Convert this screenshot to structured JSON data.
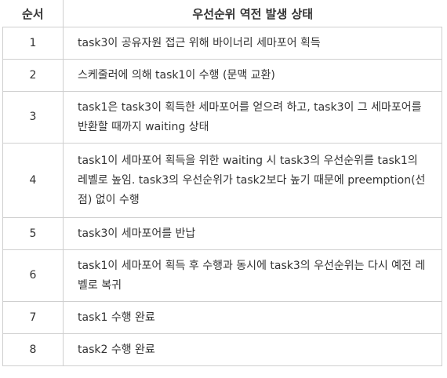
{
  "table": {
    "headers": [
      "순서",
      "우선순위 역전 발생 상태"
    ],
    "rows": [
      {
        "num": "1",
        "desc": "task3이 공유자원 접근 위해 바이너리 세마포어 획득"
      },
      {
        "num": "2",
        "desc": "스케줄러에 의해 task1이 수행 (문맥 교환)"
      },
      {
        "num": "3",
        "desc": "task1은 task3이 획득한 세마포어를 얻으려 하고, task3이 그 세마포어를 반환할 때까지 waiting 상태"
      },
      {
        "num": "4",
        "desc": "task1이 세마포어 획득을 위한 waiting 시 task3의 우선순위를 task1의 레벨로 높임. task3의 우선순위가 task2보다 높기 때문에 preemption(선점) 없이 수행"
      },
      {
        "num": "5",
        "desc": "task3이 세마포어를 반납"
      },
      {
        "num": "6",
        "desc": "task1이 세마포어 획득 후 수행과 동시에 task3의 우선순위는 다시 예전 레벨로 복귀"
      },
      {
        "num": "7",
        "desc": "task1 수행 완료"
      },
      {
        "num": "8",
        "desc": "task2 수행 완료"
      }
    ]
  }
}
